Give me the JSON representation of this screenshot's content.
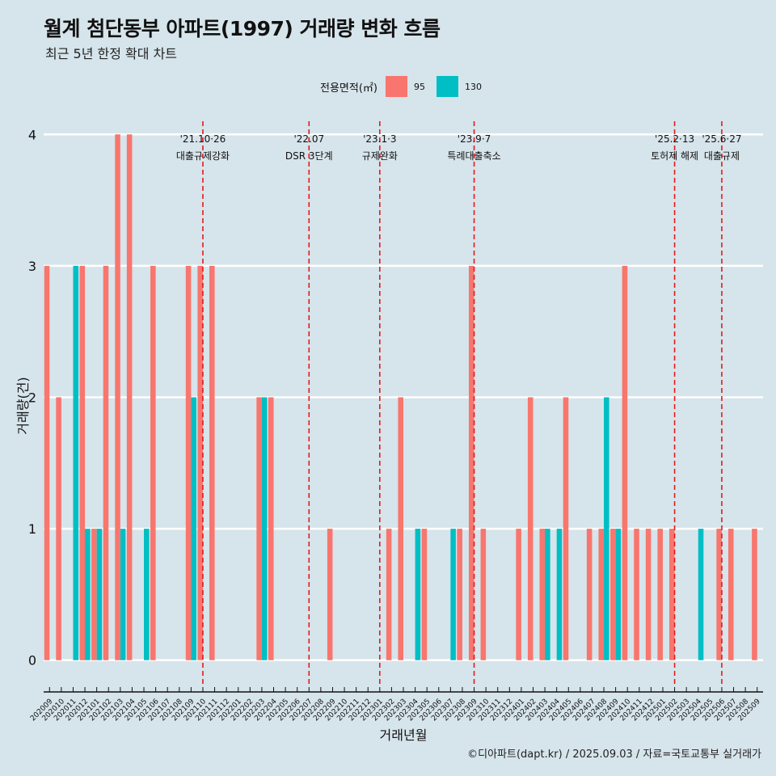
{
  "title": "월계 첨단동부 아파트(1997) 거래량 변화 흐름",
  "subtitle": "최근 5년 한정 확대 차트",
  "credit": "©디아파트(dapt.kr) / 2025.09.03 / 자료=국토교통부 실거래가",
  "legend": {
    "title": "전용면적(㎡)",
    "items": [
      {
        "label": "95",
        "color": "#f8766d"
      },
      {
        "label": "130",
        "color": "#00bfc4"
      }
    ]
  },
  "chart_data": {
    "type": "bar",
    "xlabel": "거래년월",
    "ylabel": "거래량(건)",
    "ylim": [
      -0.18,
      4.1
    ],
    "yticks": [
      0,
      1,
      2,
      3,
      4
    ],
    "grid": true,
    "legend_position": "top",
    "categories": [
      "202009",
      "202010",
      "202011",
      "202012",
      "202101",
      "202102",
      "202103",
      "202104",
      "202105",
      "202106",
      "202107",
      "202108",
      "202109",
      "202110",
      "202111",
      "202112",
      "202201",
      "202202",
      "202203",
      "202204",
      "202205",
      "202206",
      "202207",
      "202208",
      "202209",
      "202210",
      "202211",
      "202212",
      "202301",
      "202302",
      "202303",
      "202304",
      "202305",
      "202306",
      "202307",
      "202308",
      "202309",
      "202310",
      "202311",
      "202312",
      "202401",
      "202402",
      "202403",
      "202404",
      "202405",
      "202406",
      "202407",
      "202408",
      "202409",
      "202410",
      "202411",
      "202412",
      "202501",
      "202502",
      "202503",
      "202504",
      "202505",
      "202506",
      "202507",
      "202508",
      "202509"
    ],
    "series": [
      {
        "name": "95",
        "color": "#f8766d",
        "values": [
          3,
          2,
          0,
          3,
          1,
          3,
          4,
          4,
          0,
          3,
          0,
          0,
          3,
          3,
          3,
          0,
          0,
          0,
          2,
          2,
          0,
          0,
          0,
          0,
          1,
          0,
          0,
          0,
          0,
          1,
          2,
          0,
          1,
          0,
          0,
          1,
          3,
          1,
          0,
          0,
          1,
          2,
          1,
          0,
          2,
          0,
          1,
          1,
          1,
          3,
          1,
          1,
          1,
          1,
          0,
          0,
          0,
          1,
          1,
          0,
          1
        ]
      },
      {
        "name": "130",
        "color": "#00bfc4",
        "values": [
          0,
          0,
          3,
          1,
          1,
          0,
          1,
          0,
          1,
          0,
          0,
          0,
          2,
          0,
          0,
          0,
          0,
          0,
          2,
          0,
          0,
          0,
          0,
          0,
          0,
          0,
          0,
          0,
          0,
          0,
          0,
          1,
          0,
          0,
          1,
          0,
          0,
          0,
          0,
          0,
          0,
          0,
          1,
          1,
          0,
          0,
          0,
          2,
          1,
          0,
          0,
          0,
          0,
          0,
          0,
          1,
          0,
          0,
          0,
          0,
          0
        ]
      }
    ],
    "annotations": [
      {
        "x": "202110",
        "date": "'21.10·26",
        "label": "대출규제강화"
      },
      {
        "x": "202207",
        "date": "'22.07",
        "label": "DSR 3단계"
      },
      {
        "x": "202301",
        "date": "'23.1·3",
        "label": "규제완화"
      },
      {
        "x": "202309",
        "date": "'23.9·7",
        "label": "특례대출축소"
      },
      {
        "x": "202502",
        "date": "'25.2·13",
        "label": "토허제 해제"
      },
      {
        "x": "202506",
        "date": "'25.6·27",
        "label": "대출규제"
      }
    ]
  }
}
